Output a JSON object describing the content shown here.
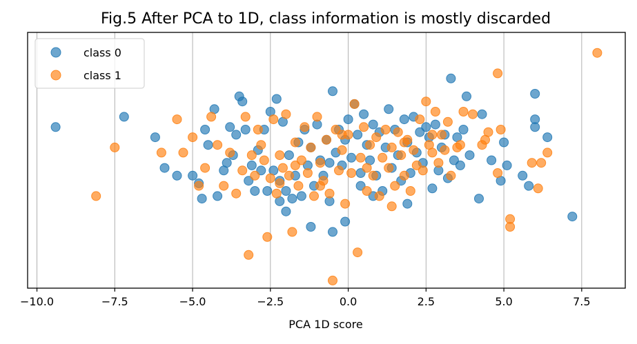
{
  "chart_data": {
    "type": "scatter",
    "title": "Fig.5 After PCA to 1D, class information is mostly discarded",
    "xlabel": "PCA 1D score",
    "ylabel": "",
    "xlim": [
      -10.3,
      8.9
    ],
    "ylim": [
      0,
      1
    ],
    "x_ticks": [
      -10.0,
      -7.5,
      -5.0,
      -2.5,
      0.0,
      2.5,
      5.0,
      7.5
    ],
    "x_tick_labels": [
      "−10.0",
      "−7.5",
      "−5.0",
      "−2.5",
      "0.0",
      "2.5",
      "5.0",
      "7.5"
    ],
    "grid": "vertical",
    "legend_position": "top-left",
    "series": [
      {
        "name": "class 0",
        "color": "#1f77b4",
        "points": [
          [
            -9.4,
            0.63
          ],
          [
            -7.2,
            0.67
          ],
          [
            -6.2,
            0.59
          ],
          [
            -5.9,
            0.47
          ],
          [
            -5.5,
            0.44
          ],
          [
            -5.0,
            0.44
          ],
          [
            -4.8,
            0.41
          ],
          [
            -4.7,
            0.35
          ],
          [
            -4.6,
            0.62
          ],
          [
            -4.5,
            0.56
          ],
          [
            -4.3,
            0.7
          ],
          [
            -4.2,
            0.36
          ],
          [
            -4.0,
            0.46
          ],
          [
            -3.9,
            0.49
          ],
          [
            -3.8,
            0.63
          ],
          [
            -3.6,
            0.6
          ],
          [
            -3.5,
            0.75
          ],
          [
            -3.4,
            0.73
          ],
          [
            -3.3,
            0.62
          ],
          [
            -3.2,
            0.42
          ],
          [
            -3.1,
            0.48
          ],
          [
            -3.0,
            0.38
          ],
          [
            -2.9,
            0.54
          ],
          [
            -2.8,
            0.46
          ],
          [
            -2.7,
            0.62
          ],
          [
            -2.6,
            0.38
          ],
          [
            -2.5,
            0.69
          ],
          [
            -2.4,
            0.46
          ],
          [
            -2.3,
            0.74
          ],
          [
            -2.2,
            0.42
          ],
          [
            -2.1,
            0.65
          ],
          [
            -2.0,
            0.38
          ],
          [
            -1.9,
            0.52
          ],
          [
            -1.8,
            0.35
          ],
          [
            -1.7,
            0.44
          ],
          [
            -1.6,
            0.57
          ],
          [
            -1.5,
            0.36
          ],
          [
            -1.4,
            0.62
          ],
          [
            -1.3,
            0.48
          ],
          [
            -1.2,
            0.55
          ],
          [
            -1.1,
            0.4
          ],
          [
            -1.0,
            0.64
          ],
          [
            -0.9,
            0.5
          ],
          [
            -0.8,
            0.44
          ],
          [
            -0.7,
            0.58
          ],
          [
            -0.6,
            0.49
          ],
          [
            -0.5,
            0.77
          ],
          [
            -0.4,
            0.53
          ],
          [
            -0.3,
            0.62
          ],
          [
            -0.2,
            0.48
          ],
          [
            -0.1,
            0.58
          ],
          [
            0.0,
            0.66
          ],
          [
            0.1,
            0.51
          ],
          [
            0.2,
            0.72
          ],
          [
            0.3,
            0.6
          ],
          [
            0.4,
            0.45
          ],
          [
            0.5,
            0.68
          ],
          [
            0.6,
            0.56
          ],
          [
            0.7,
            0.5
          ],
          [
            0.8,
            0.64
          ],
          [
            0.9,
            0.44
          ],
          [
            1.0,
            0.61
          ],
          [
            1.1,
            0.38
          ],
          [
            1.2,
            0.55
          ],
          [
            1.3,
            0.7
          ],
          [
            1.4,
            0.47
          ],
          [
            1.5,
            0.62
          ],
          [
            1.6,
            0.52
          ],
          [
            1.7,
            0.42
          ],
          [
            1.8,
            0.66
          ],
          [
            1.9,
            0.57
          ],
          [
            2.0,
            0.45
          ],
          [
            2.1,
            0.67
          ],
          [
            2.2,
            0.53
          ],
          [
            2.3,
            0.61
          ],
          [
            2.4,
            0.49
          ],
          [
            2.5,
            0.63
          ],
          [
            2.6,
            0.59
          ],
          [
            2.7,
            0.39
          ],
          [
            2.8,
            0.64
          ],
          [
            2.9,
            0.46
          ],
          [
            3.0,
            0.55
          ],
          [
            3.1,
            0.6
          ],
          [
            3.2,
            0.43
          ],
          [
            3.3,
            0.82
          ],
          [
            3.4,
            0.5
          ],
          [
            3.5,
            0.59
          ],
          [
            3.6,
            0.48
          ],
          [
            3.7,
            0.62
          ],
          [
            3.8,
            0.75
          ],
          [
            3.9,
            0.52
          ],
          [
            4.2,
            0.35
          ],
          [
            4.3,
            0.68
          ],
          [
            4.6,
            0.5
          ],
          [
            4.9,
            0.42
          ],
          [
            5.0,
            0.57
          ],
          [
            5.1,
            0.48
          ],
          [
            5.6,
            0.44
          ],
          [
            5.8,
            0.4
          ],
          [
            6.0,
            0.76
          ],
          [
            6.0,
            0.66
          ],
          [
            6.0,
            0.63
          ],
          [
            6.4,
            0.59
          ],
          [
            7.2,
            0.28
          ],
          [
            -1.2,
            0.24
          ],
          [
            -0.5,
            0.22
          ],
          [
            -2.2,
            0.34
          ],
          [
            -0.1,
            0.26
          ],
          [
            -3.7,
            0.52
          ],
          [
            0.8,
            0.36
          ],
          [
            1.9,
            0.33
          ],
          [
            -0.6,
            0.34
          ],
          [
            -2.0,
            0.3
          ],
          [
            0.4,
            0.4
          ]
        ]
      },
      {
        "name": "class 1",
        "color": "#ff7f0e",
        "points": [
          [
            -8.1,
            0.36
          ],
          [
            -7.5,
            0.55
          ],
          [
            -5.5,
            0.66
          ],
          [
            -5.3,
            0.53
          ],
          [
            -5.0,
            0.59
          ],
          [
            -4.8,
            0.4
          ],
          [
            -4.6,
            0.47
          ],
          [
            -4.4,
            0.67
          ],
          [
            -4.2,
            0.56
          ],
          [
            -4.0,
            0.4
          ],
          [
            -3.8,
            0.53
          ],
          [
            -3.6,
            0.37
          ],
          [
            -3.4,
            0.46
          ],
          [
            -3.3,
            0.67
          ],
          [
            -3.2,
            0.13
          ],
          [
            -3.1,
            0.52
          ],
          [
            -3.0,
            0.44
          ],
          [
            -2.9,
            0.62
          ],
          [
            -2.8,
            0.56
          ],
          [
            -2.7,
            0.5
          ],
          [
            -2.6,
            0.2
          ],
          [
            -2.5,
            0.43
          ],
          [
            -2.4,
            0.66
          ],
          [
            -2.3,
            0.37
          ],
          [
            -2.2,
            0.52
          ],
          [
            -2.1,
            0.47
          ],
          [
            -2.0,
            0.68
          ],
          [
            -1.9,
            0.44
          ],
          [
            -1.8,
            0.22
          ],
          [
            -1.7,
            0.57
          ],
          [
            -1.6,
            0.4
          ],
          [
            -1.5,
            0.5
          ],
          [
            -1.4,
            0.63
          ],
          [
            -1.3,
            0.45
          ],
          [
            -1.2,
            0.55
          ],
          [
            -1.1,
            0.36
          ],
          [
            -1.0,
            0.67
          ],
          [
            -0.9,
            0.49
          ],
          [
            -0.8,
            0.42
          ],
          [
            -0.7,
            0.58
          ],
          [
            -0.6,
            0.37
          ],
          [
            -0.5,
            0.03
          ],
          [
            -0.4,
            0.62
          ],
          [
            -0.3,
            0.46
          ],
          [
            -0.2,
            0.54
          ],
          [
            -0.1,
            0.33
          ],
          [
            0.0,
            0.6
          ],
          [
            0.1,
            0.45
          ],
          [
            0.2,
            0.72
          ],
          [
            0.3,
            0.14
          ],
          [
            0.4,
            0.51
          ],
          [
            0.5,
            0.63
          ],
          [
            0.6,
            0.38
          ],
          [
            0.7,
            0.56
          ],
          [
            0.8,
            0.44
          ],
          [
            0.9,
            0.59
          ],
          [
            1.0,
            0.36
          ],
          [
            1.1,
            0.51
          ],
          [
            1.2,
            0.62
          ],
          [
            1.3,
            0.47
          ],
          [
            1.4,
            0.55
          ],
          [
            1.5,
            0.4
          ],
          [
            1.6,
            0.61
          ],
          [
            1.7,
            0.52
          ],
          [
            1.8,
            0.44
          ],
          [
            1.9,
            0.58
          ],
          [
            2.0,
            0.38
          ],
          [
            2.1,
            0.54
          ],
          [
            2.2,
            0.48
          ],
          [
            2.3,
            0.66
          ],
          [
            2.4,
            0.46
          ],
          [
            2.5,
            0.73
          ],
          [
            2.6,
            0.56
          ],
          [
            2.7,
            0.53
          ],
          [
            2.8,
            0.69
          ],
          [
            2.9,
            0.49
          ],
          [
            3.0,
            0.6
          ],
          [
            3.1,
            0.54
          ],
          [
            3.2,
            0.65
          ],
          [
            3.3,
            0.44
          ],
          [
            3.5,
            0.55
          ],
          [
            3.7,
            0.69
          ],
          [
            4.0,
            0.68
          ],
          [
            4.3,
            0.56
          ],
          [
            4.4,
            0.58
          ],
          [
            4.5,
            0.61
          ],
          [
            4.8,
            0.84
          ],
          [
            4.8,
            0.45
          ],
          [
            4.9,
            0.62
          ],
          [
            5.2,
            0.27
          ],
          [
            5.2,
            0.24
          ],
          [
            5.9,
            0.49
          ],
          [
            6.1,
            0.39
          ],
          [
            6.2,
            0.49
          ],
          [
            6.4,
            0.53
          ],
          [
            8.0,
            0.92
          ],
          [
            -6.0,
            0.53
          ],
          [
            -2.2,
            0.41
          ],
          [
            1.4,
            0.32
          ],
          [
            -0.9,
            0.4
          ],
          [
            0.6,
            0.47
          ],
          [
            -1.7,
            0.48
          ],
          [
            2.7,
            0.6
          ],
          [
            -0.2,
            0.6
          ],
          [
            1.8,
            0.57
          ],
          [
            3.6,
            0.56
          ]
        ]
      }
    ]
  }
}
